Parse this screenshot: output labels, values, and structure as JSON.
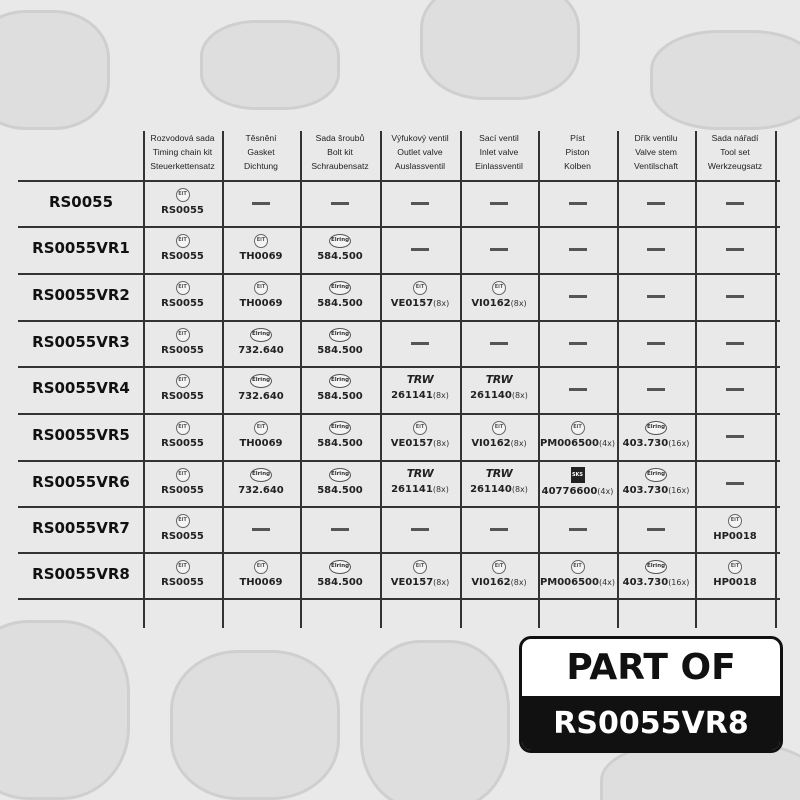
{
  "headers": [
    [
      "Rozvodová sada",
      "Timing chain kit",
      "Steuerkettensatz"
    ],
    [
      "Těsnění",
      "Gasket",
      "Dichtung"
    ],
    [
      "Sada šroubů",
      "Bolt kit",
      "Schraubensatz"
    ],
    [
      "Výfukový ventil",
      "Outlet valve",
      "Auslassventil"
    ],
    [
      "Sací ventil",
      "Inlet valve",
      "Einlassventil"
    ],
    [
      "Píst",
      "Piston",
      "Kolben"
    ],
    [
      "Dřík ventilu",
      "Valve stem",
      "Ventilschaft"
    ],
    [
      "Sada nářadí",
      "Tool set",
      "Werkzeugsatz"
    ]
  ],
  "brand_logos": {
    "eit": "EiT",
    "elring": "Elring",
    "trw": "TRW",
    "sks": "SKS"
  },
  "rows": [
    {
      "label": "RS0055",
      "cells": [
        {
          "brand": "eit",
          "code": "RS0055"
        },
        null,
        null,
        null,
        null,
        null,
        null,
        null
      ]
    },
    {
      "label": "RS0055VR1",
      "cells": [
        {
          "brand": "eit",
          "code": "RS0055"
        },
        {
          "brand": "eit",
          "code": "TH0069"
        },
        {
          "brand": "elring",
          "code": "584.500"
        },
        null,
        null,
        null,
        null,
        null
      ]
    },
    {
      "label": "RS0055VR2",
      "cells": [
        {
          "brand": "eit",
          "code": "RS0055"
        },
        {
          "brand": "eit",
          "code": "TH0069"
        },
        {
          "brand": "elring",
          "code": "584.500"
        },
        {
          "brand": "eit",
          "code": "VE0157",
          "qty": "(8x)"
        },
        {
          "brand": "eit",
          "code": "VI0162",
          "qty": "(8x)"
        },
        null,
        null,
        null
      ]
    },
    {
      "label": "RS0055VR3",
      "cells": [
        {
          "brand": "eit",
          "code": "RS0055"
        },
        {
          "brand": "elring",
          "code": "732.640"
        },
        {
          "brand": "elring",
          "code": "584.500"
        },
        null,
        null,
        null,
        null,
        null
      ]
    },
    {
      "label": "RS0055VR4",
      "cells": [
        {
          "brand": "eit",
          "code": "RS0055"
        },
        {
          "brand": "elring",
          "code": "732.640"
        },
        {
          "brand": "elring",
          "code": "584.500"
        },
        {
          "brand": "trw",
          "code": "261141",
          "qty": "(8x)"
        },
        {
          "brand": "trw",
          "code": "261140",
          "qty": "(8x)"
        },
        null,
        null,
        null
      ]
    },
    {
      "label": "RS0055VR5",
      "cells": [
        {
          "brand": "eit",
          "code": "RS0055"
        },
        {
          "brand": "eit",
          "code": "TH0069"
        },
        {
          "brand": "elring",
          "code": "584.500"
        },
        {
          "brand": "eit",
          "code": "VE0157",
          "qty": "(8x)"
        },
        {
          "brand": "eit",
          "code": "VI0162",
          "qty": "(8x)"
        },
        {
          "brand": "eit",
          "code": "PM006500",
          "qty": "(4x)"
        },
        {
          "brand": "elring",
          "code": "403.730",
          "qty": "(16x)"
        },
        null
      ]
    },
    {
      "label": "RS0055VR6",
      "cells": [
        {
          "brand": "eit",
          "code": "RS0055"
        },
        {
          "brand": "elring",
          "code": "732.640"
        },
        {
          "brand": "elring",
          "code": "584.500"
        },
        {
          "brand": "trw",
          "code": "261141",
          "qty": "(8x)"
        },
        {
          "brand": "trw",
          "code": "261140",
          "qty": "(8x)"
        },
        {
          "brand": "sks",
          "code": "40776600",
          "qty": "(4x)"
        },
        {
          "brand": "elring",
          "code": "403.730",
          "qty": "(16x)"
        },
        null
      ]
    },
    {
      "label": "RS0055VR7",
      "cells": [
        {
          "brand": "eit",
          "code": "RS0055"
        },
        null,
        null,
        null,
        null,
        null,
        null,
        {
          "brand": "eit",
          "code": "HP0018"
        }
      ]
    },
    {
      "label": "RS0055VR8",
      "cells": [
        {
          "brand": "eit",
          "code": "RS0055"
        },
        {
          "brand": "eit",
          "code": "TH0069"
        },
        {
          "brand": "elring",
          "code": "584.500"
        },
        {
          "brand": "eit",
          "code": "VE0157",
          "qty": "(8x)"
        },
        {
          "brand": "eit",
          "code": "VI0162",
          "qty": "(8x)"
        },
        {
          "brand": "eit",
          "code": "PM006500",
          "qty": "(4x)"
        },
        {
          "brand": "elring",
          "code": "403.730",
          "qty": "(16x)"
        },
        {
          "brand": "eit",
          "code": "HP0018"
        }
      ]
    }
  ],
  "badge": {
    "top": "PART OF",
    "bottom": "RS0055VR8"
  }
}
